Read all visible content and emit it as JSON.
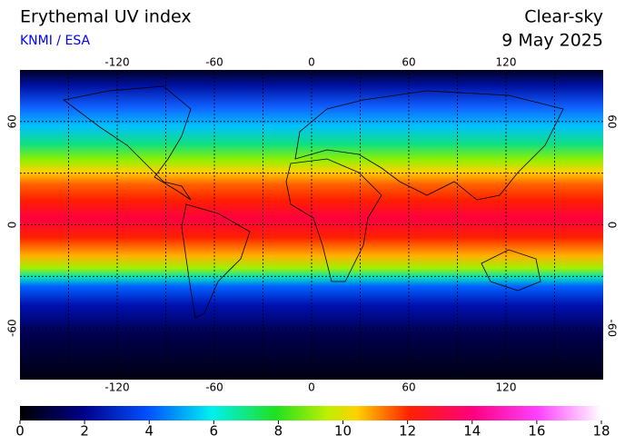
{
  "header": {
    "title": "Erythemal UV index",
    "source": "KNMI / ESA",
    "mode": "Clear-sky",
    "date": "9 May 2025"
  },
  "map": {
    "lon_range": [
      -180,
      180
    ],
    "lat_range": [
      -90,
      90
    ],
    "lon_ticks": [
      -120,
      -60,
      0,
      60,
      120
    ],
    "lat_ticks": [
      60,
      0,
      -60
    ],
    "grid": true
  },
  "colorbar": {
    "range": [
      0,
      18
    ],
    "ticks": [
      0,
      2,
      4,
      6,
      8,
      10,
      12,
      14,
      16,
      18
    ]
  }
}
